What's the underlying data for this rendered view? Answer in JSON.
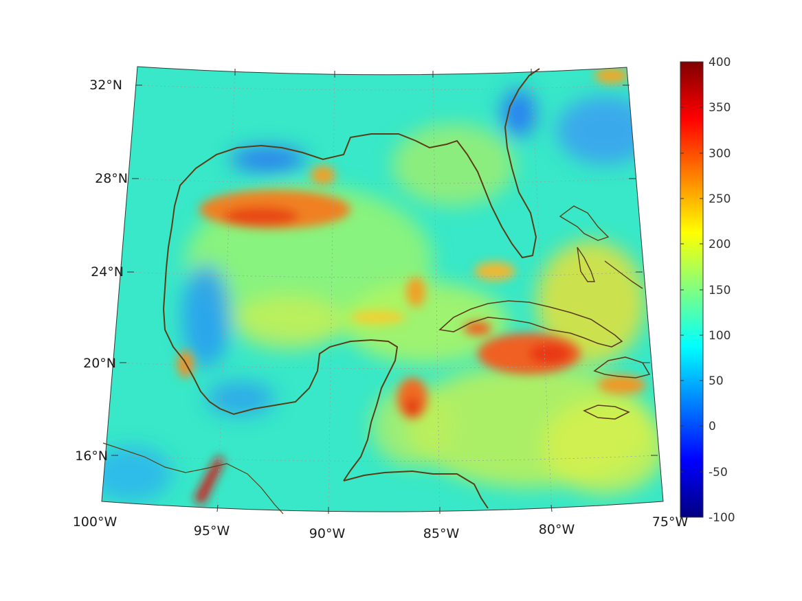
{
  "map": {
    "lon_labels": [
      "100°W",
      "95°W",
      "90°W",
      "85°W",
      "80°W",
      "75°W"
    ],
    "lat_labels": [
      "16°N",
      "20°N",
      "24°N",
      "28°N",
      "32°N"
    ],
    "lon_range": [
      -100,
      -75
    ],
    "lat_range": [
      14,
      33
    ],
    "coastline_color": "#5a3c14",
    "grid_style": "dotted",
    "background_field_color": "#33e6c8"
  },
  "colorbar": {
    "ticks": [
      "400",
      "350",
      "300",
      "250",
      "200",
      "150",
      "100",
      "50",
      "0",
      "-50",
      "-100"
    ],
    "range": [
      -100,
      400
    ],
    "colormap": "jet",
    "colormap_stops": [
      "#000080",
      "#0000ff",
      "#0080ff",
      "#00ffff",
      "#80ff80",
      "#ffff00",
      "#ff8000",
      "#ff0000",
      "#800000"
    ]
  },
  "chart_data": {
    "type": "heatmap",
    "title": "",
    "xlabel": "",
    "ylabel": "",
    "xlim": [
      -100,
      -75
    ],
    "ylim": [
      14,
      33
    ],
    "value_range": [
      -100,
      400
    ],
    "legend": "right",
    "grid": true
  }
}
